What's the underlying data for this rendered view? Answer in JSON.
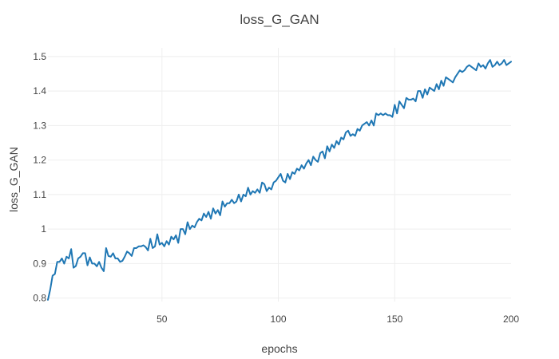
{
  "chart_data": {
    "type": "line",
    "title": "loss_G_GAN",
    "xlabel": "epochs",
    "ylabel": "loss_G_GAN",
    "xlim": [
      1,
      200
    ],
    "ylim": [
      0.79,
      1.525
    ],
    "grid": true,
    "legend": "none",
    "x_ticks": [
      50,
      100,
      150,
      200
    ],
    "x_tick_labels": [
      "50",
      "100",
      "150",
      "200"
    ],
    "y_ticks": [
      0.8,
      0.9,
      1.0,
      1.1,
      1.2,
      1.3,
      1.4,
      1.5
    ],
    "y_tick_labels": [
      "0.8",
      "0.9",
      "1",
      "1.1",
      "1.2",
      "1.3",
      "1.4",
      "1.5"
    ],
    "series": [
      {
        "color": "#1f77b4",
        "x_start": 1,
        "x_step": 1,
        "values": [
          0.795,
          0.825,
          0.865,
          0.87,
          0.905,
          0.905,
          0.915,
          0.9,
          0.92,
          0.915,
          0.942,
          0.888,
          0.893,
          0.915,
          0.92,
          0.93,
          0.93,
          0.895,
          0.918,
          0.9,
          0.9,
          0.892,
          0.905,
          0.888,
          0.878,
          0.945,
          0.922,
          0.92,
          0.93,
          0.915,
          0.915,
          0.905,
          0.908,
          0.92,
          0.935,
          0.93,
          0.922,
          0.945,
          0.945,
          0.95,
          0.95,
          0.953,
          0.948,
          0.938,
          0.972,
          0.945,
          0.95,
          0.985,
          0.955,
          0.96,
          0.95,
          0.965,
          0.955,
          0.978,
          0.97,
          0.982,
          0.96,
          1.0,
          1.0,
          0.985,
          1.02,
          1.0,
          1.01,
          1.005,
          1.02,
          1.03,
          1.025,
          1.045,
          1.035,
          1.05,
          1.03,
          1.06,
          1.045,
          1.055,
          1.04,
          1.08,
          1.065,
          1.075,
          1.075,
          1.085,
          1.075,
          1.08,
          1.1,
          1.08,
          1.1,
          1.095,
          1.12,
          1.1,
          1.11,
          1.105,
          1.115,
          1.105,
          1.135,
          1.13,
          1.11,
          1.12,
          1.115,
          1.135,
          1.14,
          1.15,
          1.16,
          1.14,
          1.135,
          1.16,
          1.145,
          1.165,
          1.16,
          1.175,
          1.17,
          1.185,
          1.175,
          1.19,
          1.2,
          1.185,
          1.21,
          1.2,
          1.195,
          1.22,
          1.225,
          1.205,
          1.24,
          1.225,
          1.245,
          1.235,
          1.255,
          1.245,
          1.265,
          1.26,
          1.28,
          1.285,
          1.27,
          1.275,
          1.27,
          1.29,
          1.285,
          1.3,
          1.305,
          1.31,
          1.3,
          1.315,
          1.3,
          1.335,
          1.33,
          1.335,
          1.33,
          1.335,
          1.33,
          1.33,
          1.325,
          1.36,
          1.335,
          1.37,
          1.36,
          1.35,
          1.38,
          1.375,
          1.375,
          1.378,
          1.37,
          1.4,
          1.4,
          1.38,
          1.405,
          1.39,
          1.41,
          1.405,
          1.4,
          1.42,
          1.405,
          1.43,
          1.415,
          1.44,
          1.435,
          1.43,
          1.425,
          1.44,
          1.45,
          1.46,
          1.455,
          1.46,
          1.47,
          1.475,
          1.47,
          1.465,
          1.46,
          1.48,
          1.47,
          1.475,
          1.465,
          1.48,
          1.49,
          1.47,
          1.475,
          1.485,
          1.475,
          1.48,
          1.49,
          1.475,
          1.48,
          1.485
        ]
      }
    ]
  }
}
